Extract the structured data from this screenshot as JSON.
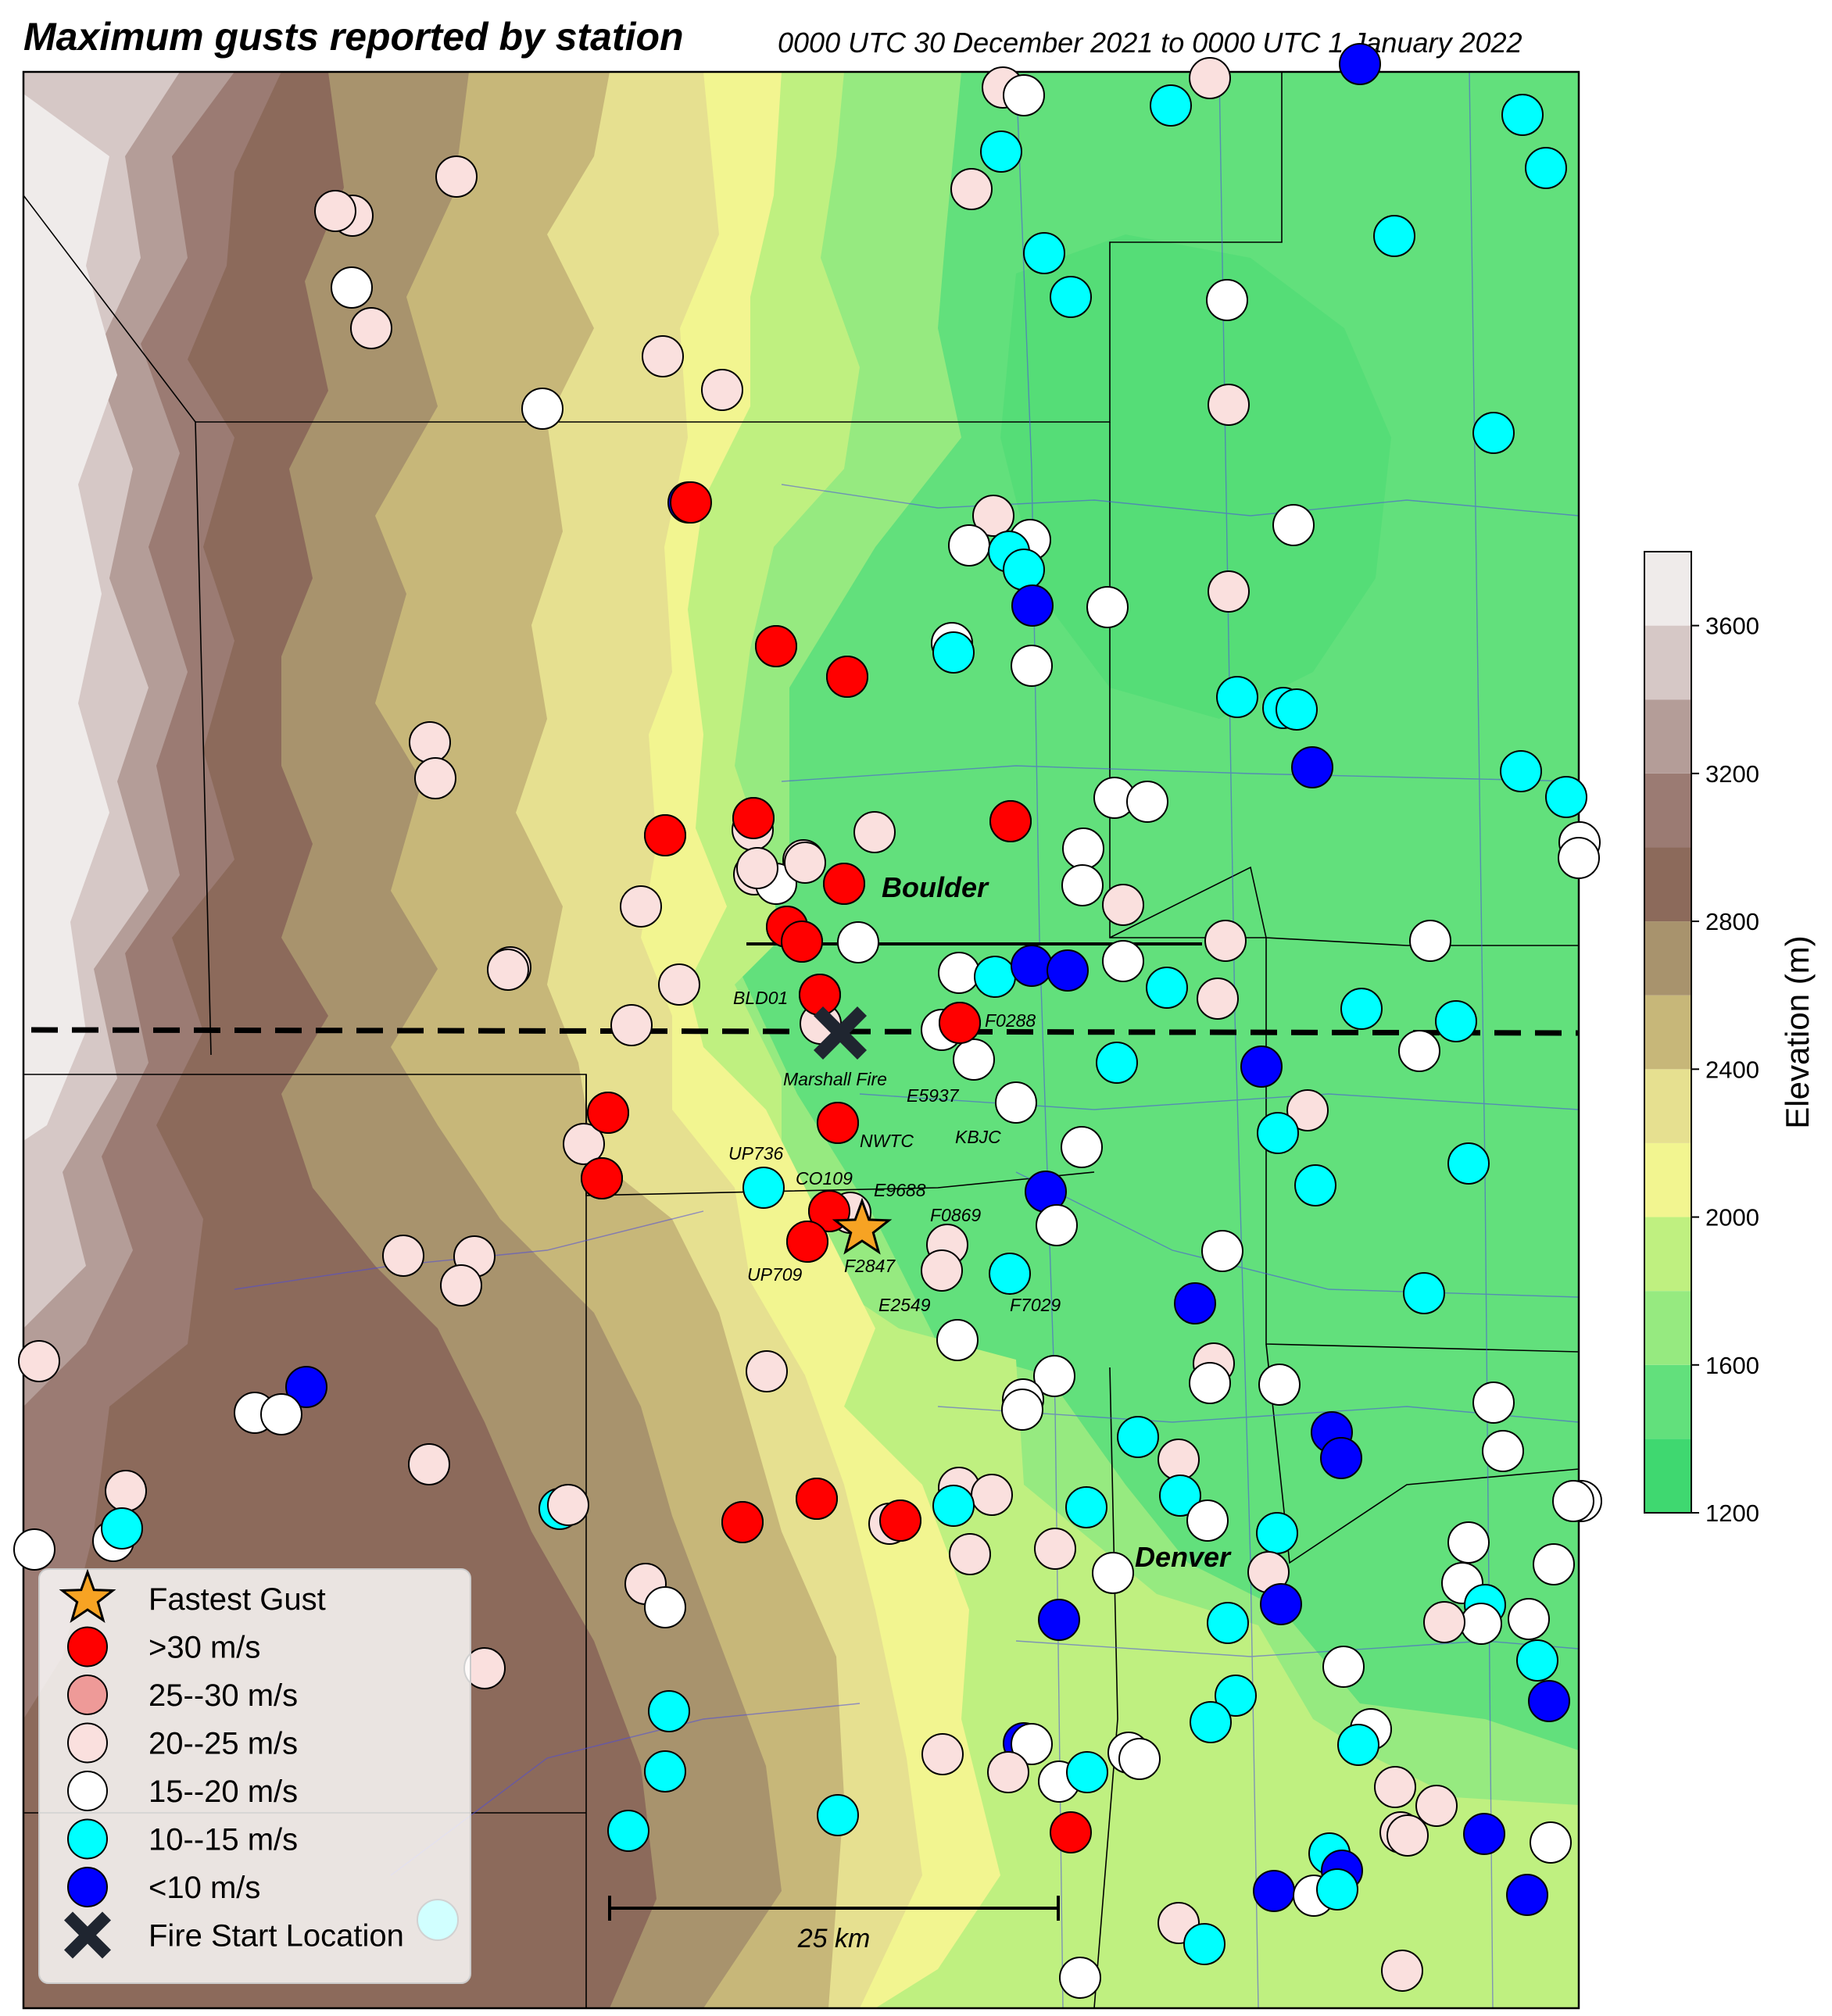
{
  "title": "Maximum gusts reported by station",
  "subtitle": "0000 UTC 30 December 2021 to 0000 UTC 1 January 2022",
  "colorbar": {
    "label": "Elevation (m)",
    "ticks": [
      "1200",
      "1600",
      "2000",
      "2400",
      "2800",
      "3200",
      "3600"
    ],
    "levels": [
      1200,
      1400,
      1600,
      1800,
      2000,
      2200,
      2400,
      2600,
      2800,
      3000,
      3200,
      3400,
      3600,
      3800
    ],
    "colors": [
      "#3fd870",
      "#62e07c",
      "#96ea80",
      "#bff080",
      "#f2f590",
      "#e6e090",
      "#c7b779",
      "#a8936d",
      "#8c6a5b",
      "#9b7b73",
      "#b49d98",
      "#d6c8c6",
      "#efebea",
      "#ffffff"
    ]
  },
  "cities": {
    "boulder": "Boulder",
    "denver": "Denver"
  },
  "labels": {
    "bld01": "BLD01",
    "f0288": "F0288",
    "marshall": "Marshall Fire",
    "e5937": "E5937",
    "nwtc": "NWTC",
    "kbjc": "KBJC",
    "up736": "UP736",
    "co109": "CO109",
    "e9688": "E9688",
    "f0869": "F0869",
    "up709": "UP709",
    "f2847": "F2847",
    "e2549": "E2549",
    "f7029": "F7029"
  },
  "scale_bar": "25 km",
  "legend": [
    {
      "label": "Fastest Gust",
      "symbol": "star",
      "color": "#f7a323"
    },
    {
      "label": ">30 m/s",
      "symbol": "circle",
      "color": "#ff0000"
    },
    {
      "label": "25--30 m/s",
      "symbol": "circle",
      "color": "#ee9a98"
    },
    {
      "label": "20--25 m/s",
      "symbol": "circle",
      "color": "#fae0de"
    },
    {
      "label": "15--20 m/s",
      "symbol": "circle",
      "color": "#ffffff"
    },
    {
      "label": "10--15 m/s",
      "symbol": "circle",
      "color": "#00ffff"
    },
    {
      "label": "<10 m/s",
      "symbol": "circle",
      "color": "#0000ff"
    },
    {
      "label": "Fire Start Location",
      "symbol": "x",
      "color": "#1f2530"
    }
  ]
}
